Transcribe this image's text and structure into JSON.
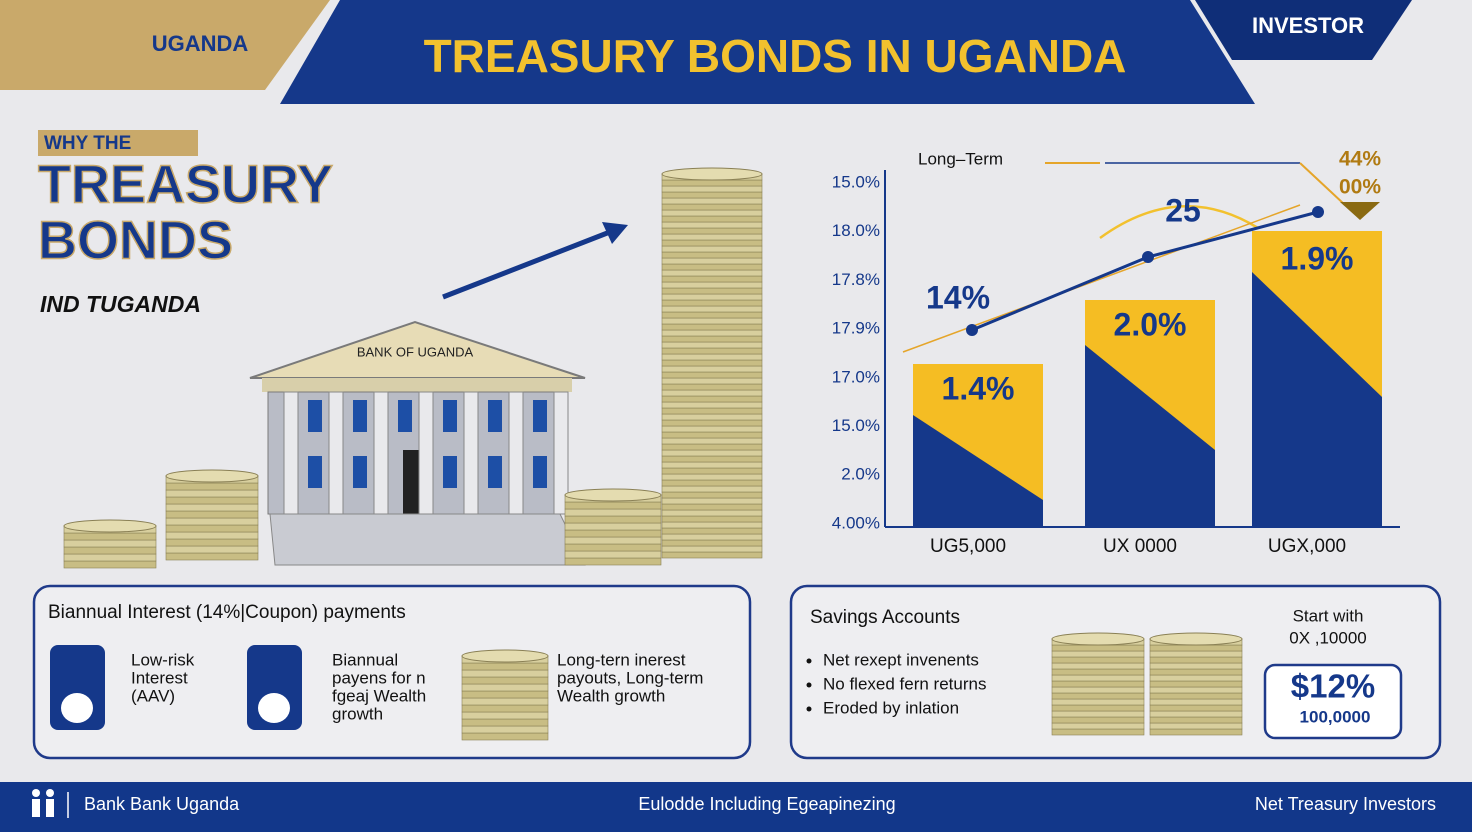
{
  "header": {
    "region": "UGANDA",
    "title": "TREASURY BONDS IN UGANDA",
    "badge": "INVESTOR"
  },
  "intro": {
    "kicker": "WHY THE",
    "title_lines": [
      "TREASURY",
      "BONDS"
    ],
    "subtitle": "IND TUGANDA"
  },
  "illustration": {
    "building_label": "BANK OF UGANDA"
  },
  "chart": {
    "legend": "Long–Term",
    "annotation": [
      "44%",
      "00%"
    ],
    "peak_label": "25",
    "line_label": "14%",
    "y_labels": [
      "15.0%",
      "18.0%",
      "17.8%",
      "17.9%",
      "17.0%",
      "15.0%",
      "2.0%",
      "4.00%"
    ],
    "bar_labels": [
      "1.4%",
      "2.0%",
      "1.9%"
    ],
    "categories": [
      "UG5,000",
      "UX 0000",
      "UGX,000"
    ]
  },
  "bonds_panel": {
    "title": "Biannual Interest (14%|Coupon) payments",
    "items": [
      [
        "Low-risk",
        "Interest",
        "(AAV)"
      ],
      [
        "Biannual",
        "payens for n",
        "fgeaj Wealth",
        "growth"
      ],
      [
        "Long-tern inerest",
        "payouts, Long-term",
        "Wealth growth"
      ]
    ]
  },
  "savings_panel": {
    "title": "Savings Accounts",
    "bullets": [
      "Net rexept invenents",
      "No flexed fern returns",
      "Eroded by inlation"
    ],
    "start": [
      "Start with",
      "0X ,10000"
    ],
    "rate": "$12%",
    "amount": "100,0000"
  },
  "footer": {
    "left": "Bank Bank Uganda",
    "center": "Eulodde Including Egeapinezing",
    "right": "Net Treasury Investors"
  }
}
